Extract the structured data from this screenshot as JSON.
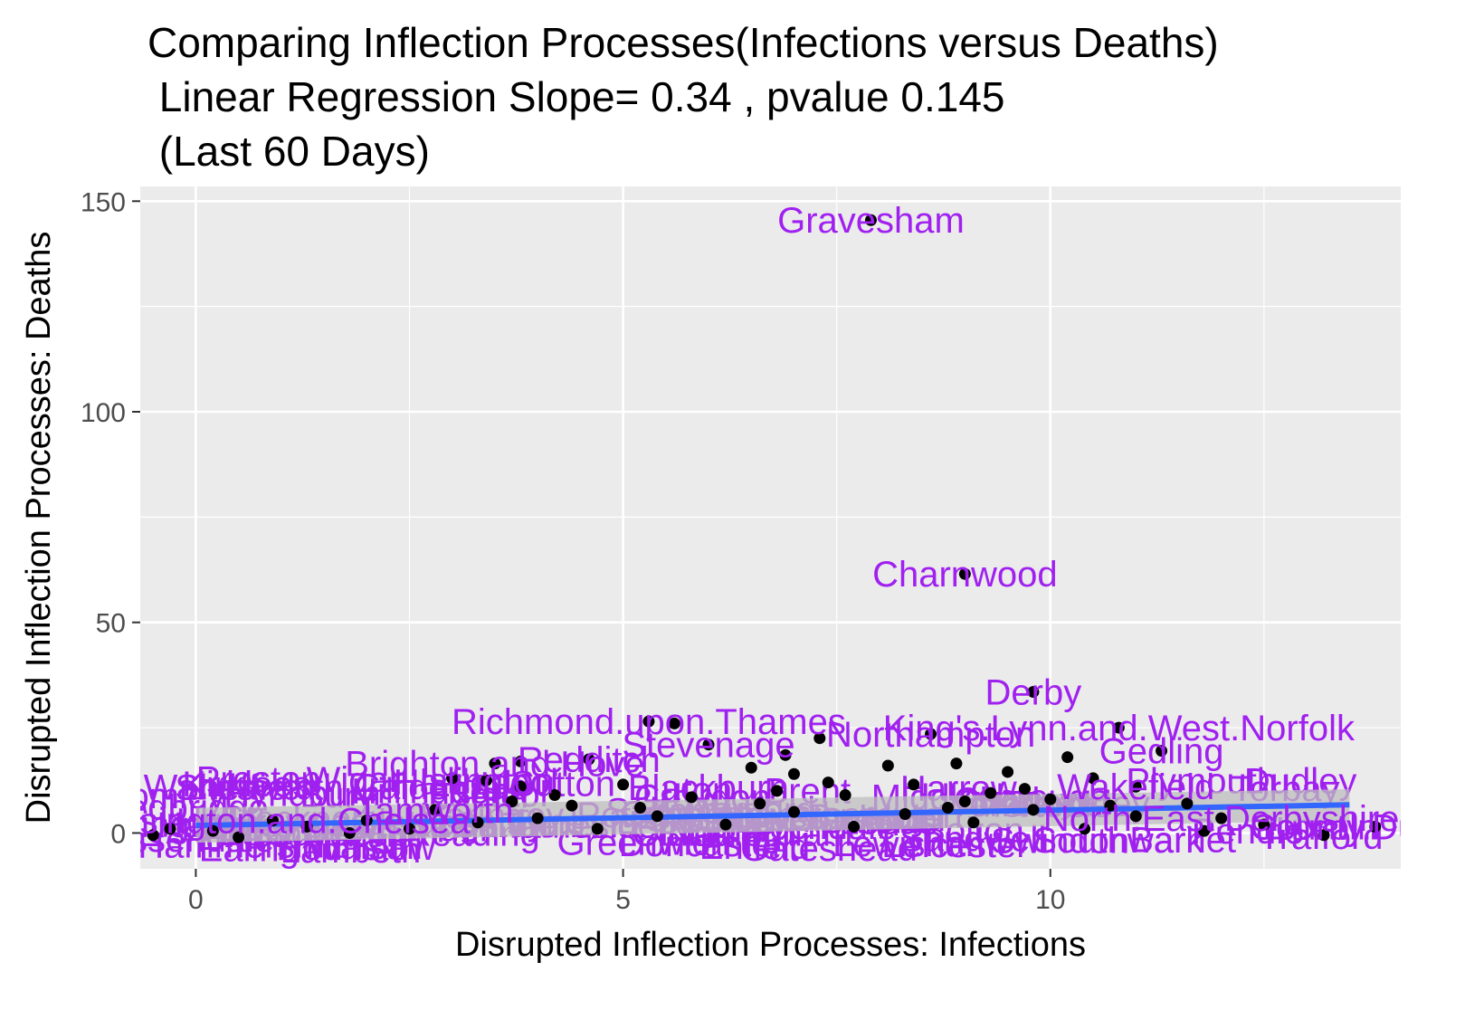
{
  "title": {
    "line1": "Comparing Inflection Processes(Infections versus Deaths)",
    "line2": " Linear Regression Slope= 0.34 , pvalue 0.145",
    "line3": " (Last 60 Days)"
  },
  "chart_data": {
    "type": "scatter",
    "xlabel": "Disrupted Inflection Processes: Infections",
    "ylabel": "Disrupted Inflection Processes: Deaths",
    "xlim": [
      -0.65,
      14.1
    ],
    "ylim": [
      -8.5,
      153.5
    ],
    "x_ticks": [
      0,
      5,
      10
    ],
    "y_ticks": [
      0,
      50,
      100,
      150
    ],
    "x_tick_labels": [
      "0",
      "5",
      "10"
    ],
    "y_tick_labels": [
      "0",
      "50",
      "100",
      "150"
    ],
    "grid": true,
    "colors": {
      "panel": "#ebebeb",
      "grid": "#ffffff",
      "points": "#000000",
      "labels": "#a020f0",
      "trend": "#3366ff",
      "ribbon": "#bdbdbd"
    },
    "trend_line": {
      "x": [
        0.0,
        13.5
      ],
      "y": [
        1.8,
        6.7
      ],
      "lower": [
        -2.3,
        3.0
      ],
      "upper": [
        6.0,
        10.4
      ]
    },
    "labeled_points": [
      {
        "name": "Gravesham",
        "x": 7.9,
        "y": 145.5
      },
      {
        "name": "Charnwood",
        "x": 9.0,
        "y": 61.5
      },
      {
        "name": "Derby",
        "x": 9.8,
        "y": 33.5
      },
      {
        "name": "Richmond.upon.Thames",
        "x": 5.3,
        "y": 26.5
      },
      {
        "name": "King's.Lynn.and.West.Norfolk",
        "x": 10.8,
        "y": 25.0
      },
      {
        "name": "Brighton.and.Hove",
        "x": 3.5,
        "y": 16.5
      },
      {
        "name": "Islington",
        "x": 3.4,
        "y": 12.5
      },
      {
        "name": "Gedling",
        "x": 11.3,
        "y": 19.5
      },
      {
        "name": "Wakefield",
        "x": 11.0,
        "y": 11.0
      },
      {
        "name": "Northampton",
        "x": 8.6,
        "y": 23.5
      },
      {
        "name": "Stevenage",
        "x": 6.0,
        "y": 21.0
      },
      {
        "name": "Redditch",
        "x": 4.6,
        "y": 17.5
      },
      {
        "name": "Tamworth",
        "x": 2.8,
        "y": 5.5
      },
      {
        "name": "Kensington.and.Chelsea",
        "x": 0.9,
        "y": 3.0
      },
      {
        "name": "North.East.Derbyshire",
        "x": 12.0,
        "y": 3.5
      },
      {
        "name": "County.Durham",
        "x": 13.8,
        "y": 1.5
      }
    ],
    "points": [
      {
        "x": 7.9,
        "y": 145.5
      },
      {
        "x": 9.0,
        "y": 61.5
      },
      {
        "x": 9.8,
        "y": 33.5
      },
      {
        "x": 5.3,
        "y": 26.5
      },
      {
        "x": 5.6,
        "y": 26.0
      },
      {
        "x": 10.8,
        "y": 25.0
      },
      {
        "x": 6.0,
        "y": 21.0
      },
      {
        "x": 7.3,
        "y": 22.5
      },
      {
        "x": 8.6,
        "y": 23.5
      },
      {
        "x": 11.3,
        "y": 19.5
      },
      {
        "x": 3.5,
        "y": 16.5
      },
      {
        "x": 3.8,
        "y": 17.0
      },
      {
        "x": 3.4,
        "y": 12.5
      },
      {
        "x": 3.8,
        "y": 11.0
      },
      {
        "x": 3.0,
        "y": 13.0
      },
      {
        "x": 11.0,
        "y": 11.0
      },
      {
        "x": 10.2,
        "y": 18.0
      },
      {
        "x": 9.3,
        "y": 9.5
      },
      {
        "x": 4.6,
        "y": 17.5
      },
      {
        "x": 6.5,
        "y": 15.5
      },
      {
        "x": 7.0,
        "y": 14.0
      },
      {
        "x": 8.1,
        "y": 16.0
      },
      {
        "x": 9.5,
        "y": 14.5
      },
      {
        "x": 10.5,
        "y": 13.0
      },
      {
        "x": 4.2,
        "y": 9.0
      },
      {
        "x": 5.0,
        "y": 11.5
      },
      {
        "x": 5.8,
        "y": 8.5
      },
      {
        "x": 6.8,
        "y": 10.0
      },
      {
        "x": 7.6,
        "y": 9.0
      },
      {
        "x": 8.4,
        "y": 11.5
      },
      {
        "x": 9.0,
        "y": 7.5
      },
      {
        "x": 10.0,
        "y": 8.0
      },
      {
        "x": 11.6,
        "y": 7.0
      },
      {
        "x": 12.0,
        "y": 3.5
      },
      {
        "x": 13.8,
        "y": 1.5
      },
      {
        "x": 2.8,
        "y": 5.5
      },
      {
        "x": 2.0,
        "y": 3.0
      },
      {
        "x": 0.9,
        "y": 3.0
      },
      {
        "x": 1.3,
        "y": 1.5
      },
      {
        "x": 0.2,
        "y": 0.5
      },
      {
        "x": -0.3,
        "y": 1.0
      },
      {
        "x": -0.5,
        "y": -0.5
      },
      {
        "x": 0.5,
        "y": -1.0
      },
      {
        "x": 1.8,
        "y": 0.0
      },
      {
        "x": 2.5,
        "y": 1.0
      },
      {
        "x": 3.3,
        "y": 2.5
      },
      {
        "x": 4.0,
        "y": 3.5
      },
      {
        "x": 4.7,
        "y": 1.0
      },
      {
        "x": 5.4,
        "y": 4.0
      },
      {
        "x": 6.2,
        "y": 2.0
      },
      {
        "x": 7.0,
        "y": 5.0
      },
      {
        "x": 7.7,
        "y": 1.5
      },
      {
        "x": 8.3,
        "y": 4.5
      },
      {
        "x": 9.1,
        "y": 2.5
      },
      {
        "x": 9.8,
        "y": 5.5
      },
      {
        "x": 10.4,
        "y": 1.0
      },
      {
        "x": 11.0,
        "y": 4.0
      },
      {
        "x": 11.8,
        "y": 0.5
      },
      {
        "x": 12.5,
        "y": 2.0
      },
      {
        "x": 13.2,
        "y": -0.5
      },
      {
        "x": 4.4,
        "y": 6.5
      },
      {
        "x": 6.6,
        "y": 7.0
      },
      {
        "x": 8.8,
        "y": 6.0
      },
      {
        "x": 10.7,
        "y": 6.5
      },
      {
        "x": 3.7,
        "y": 7.5
      },
      {
        "x": 5.2,
        "y": 6.0
      },
      {
        "x": 7.4,
        "y": 12.0
      },
      {
        "x": 9.7,
        "y": 10.5
      },
      {
        "x": 6.9,
        "y": 18.5
      },
      {
        "x": 8.9,
        "y": 16.5
      }
    ],
    "overlap_labels": [
      "Dartford",
      "Bolsover",
      "Coventry",
      "Sheffield",
      "Oxford",
      "Bristol",
      "Leicester",
      "Nottingham",
      "Sandwell",
      "Wolverhampton",
      "Walsall",
      "Dudley",
      "Stockport",
      "Trafford",
      "Salford",
      "Bolton",
      "Wigan",
      "Oldham",
      "Rochdale",
      "Bury",
      "Tameside",
      "Kirklees",
      "Calderdale",
      "Bradford",
      "Leeds",
      "Barnsley",
      "Rotherham",
      "Doncaster",
      "Hull",
      "York",
      "Lincoln",
      "Peterborough",
      "Luton",
      "Slough",
      "Reading",
      "Swindon",
      "Exeter",
      "Plymouth",
      "Torbay",
      "Poole",
      "Gateshead",
      "Sunderland",
      "Newcastle.upon.Tyne",
      "Middlesbrough",
      "Hartlepool",
      "Darlington",
      "Blackpool",
      "Preston",
      "Blackburn",
      "Burnley",
      "Hyndburn",
      "Pendle",
      "Rossendale",
      "Chorley",
      "Harrow",
      "Hillingdon",
      "Hounslow",
      "Ealing",
      "Brent",
      "Barnet",
      "Enfield",
      "Haringey",
      "Hackney",
      "Camden",
      "Southwark",
      "Lambeth",
      "Lewisham",
      "Greenwich",
      "Bexley",
      "Bromley",
      "Croydon",
      "Sutton",
      "Merton",
      "Kingston",
      "Wandsworth",
      "Hammersmith",
      "Newham",
      "Redbridge"
    ]
  }
}
